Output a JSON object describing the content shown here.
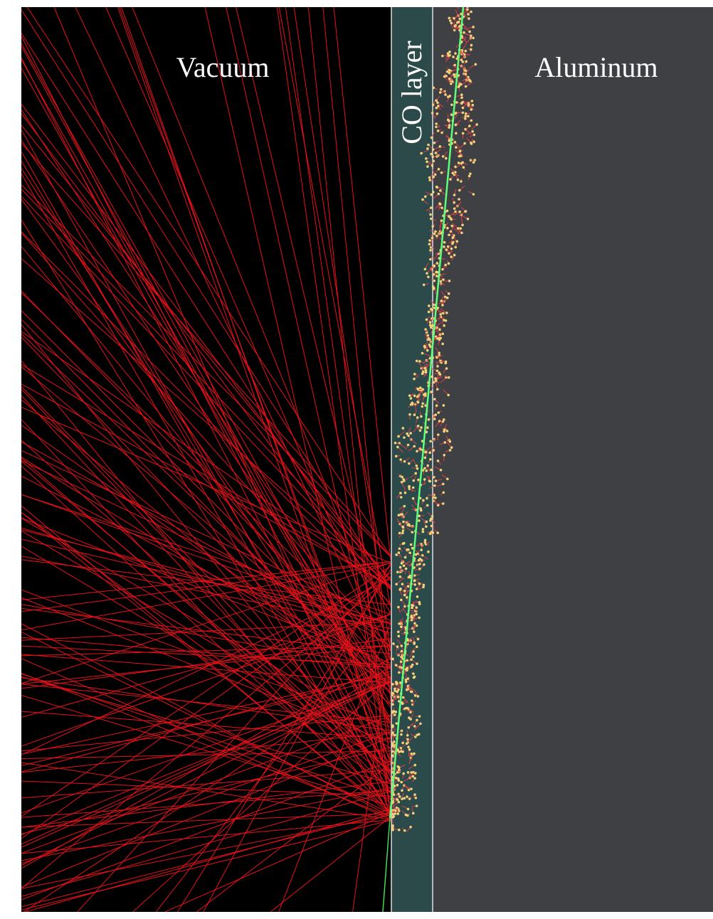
{
  "regions": {
    "vacuum": "Vacuum",
    "layer": "CO layer",
    "substrate": "Aluminum"
  }
}
